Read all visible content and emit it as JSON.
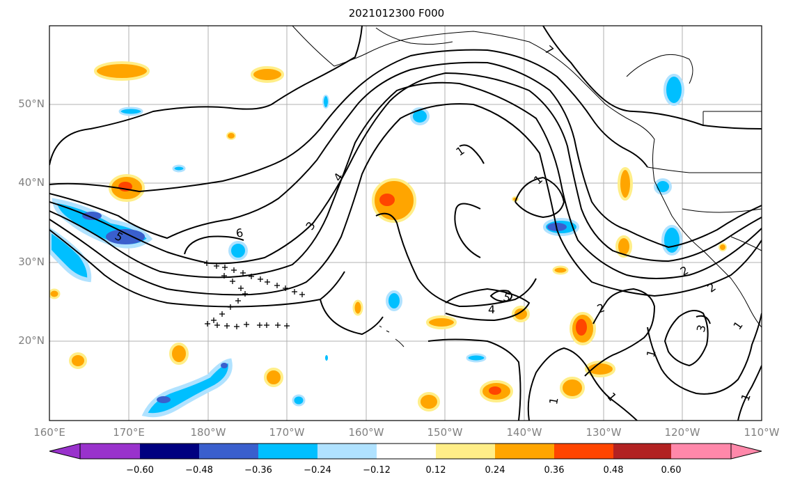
{
  "title": "2021012300 F000",
  "lat_labels": [
    "50°N",
    "40°N",
    "30°N",
    "20°N"
  ],
  "lon_labels": [
    "160°E",
    "170°E",
    "180°W",
    "170°W",
    "160°W",
    "150°W",
    "140°W",
    "130°W",
    "120°W",
    "110°W"
  ],
  "colorbar": {
    "tick_labels": [
      "−0.60",
      "−0.48",
      "−0.36",
      "−0.24",
      "−0.12",
      "0.12",
      "0.24",
      "0.36",
      "0.48",
      "0.60"
    ],
    "colors": [
      "#9932cc",
      "#000080",
      "#3a5fcd",
      "#00bfff",
      "#b0e2ff",
      "#ffffff",
      "#ffee88",
      "#ffa500",
      "#ff4500",
      "#b22222",
      "#ff88aa"
    ]
  },
  "contour_labels": [
    "6",
    "5",
    "4",
    "3",
    "2",
    "1",
    "7"
  ],
  "colors": {
    "background": "#ffffff",
    "grid": "#b0b0b0",
    "axis_label": "#808080",
    "contour": "#000000"
  }
}
